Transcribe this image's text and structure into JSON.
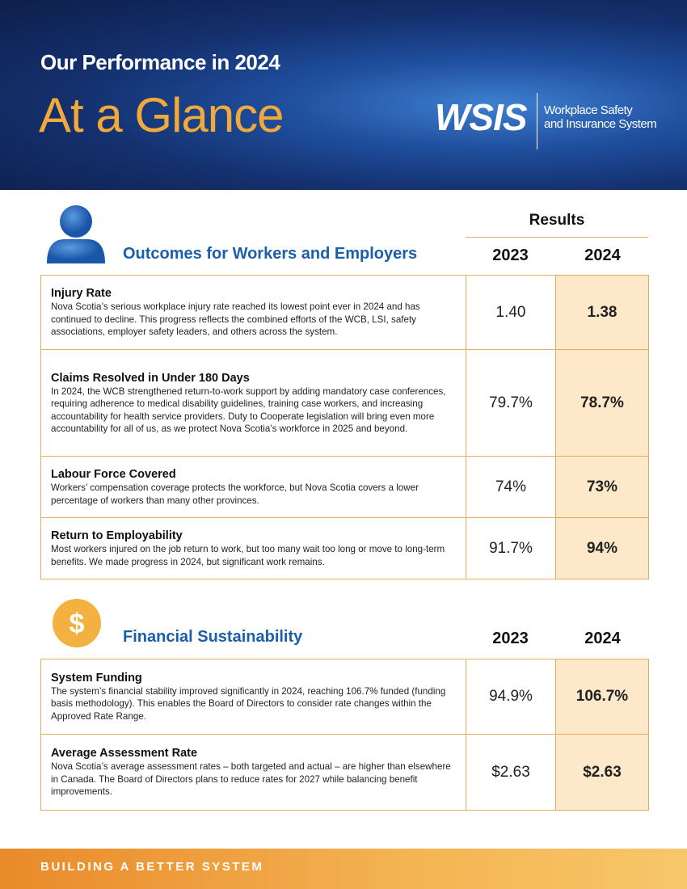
{
  "header": {
    "title": "Our Performance in 2024",
    "subtitle": "At a Glance",
    "logo": "WSIS",
    "logo_text": [
      "Workplace Safety",
      "and Insurance System"
    ]
  },
  "results_label": "Results",
  "sections": [
    {
      "title": "Outcomes for Workers and Employers",
      "icon": "person",
      "columns": [
        "2023",
        "2024"
      ],
      "rows": [
        {
          "label": "Injury Rate",
          "description": "Nova Scotia’s serious workplace injury rate reached its lowest point ever in 2024 and has continued to decline. This progress reflects the combined efforts of the WCB, LSI, safety associations, employer safety leaders, and others across the system.",
          "values": [
            "1.40",
            "1.38"
          ]
        },
        {
          "label": "Claims Resolved in Under 180 Days",
          "description": "In 2024, the WCB strengthened return-to-work support by adding mandatory case conferences, requiring adherence to medical disability guidelines, training case workers, and increasing accountability for health service providers. Duty to Cooperate legislation will bring even more accountability for all of us, as we protect Nova Scotia’s workforce in 2025 and beyond.",
          "values": [
            "79.7%",
            "78.7%"
          ]
        },
        {
          "label": "Labour Force Covered",
          "description": "Workers’ compensation coverage protects the workforce, but Nova Scotia covers a lower percentage of workers than many other provinces.",
          "values": [
            "74%",
            "73%"
          ]
        },
        {
          "label": "Return to Employability",
          "description": "Most workers injured on the job return to work, but too many wait too long or move to long-term benefits. We made progress in 2024, but significant work remains.",
          "values": [
            "91.7%",
            "94%"
          ]
        }
      ]
    },
    {
      "title": "Financial Sustainability",
      "icon": "dollar",
      "columns": [
        "2023",
        "2024"
      ],
      "rows": [
        {
          "label": "System Funding",
          "description": "The system’s financial stability improved significantly in 2024, reaching 106.7% funded (funding basis methodology). This enables the Board of Directors to consider rate changes within the Approved Rate Range.",
          "values": [
            "94.9%",
            "106.7%"
          ]
        },
        {
          "label": "Average Assessment Rate",
          "description": "Nova Scotia’s average assessment rates – both targeted and actual – are higher than elsewhere in Canada. The Board of Directors plans to reduce rates for 2027 while balancing benefit improvements.",
          "values": [
            "$2.63",
            "$2.63"
          ]
        }
      ]
    }
  ],
  "footer": "BUILDING A BETTER SYSTEM"
}
